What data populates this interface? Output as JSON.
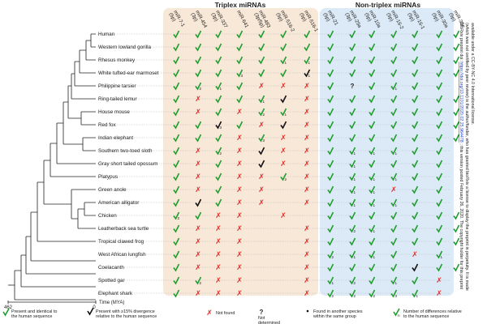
{
  "groups": {
    "triplex": {
      "title": "Triplex miRNAs",
      "columns": [
        "miR-7-1 (5p)",
        "miR-454 (3p)",
        "miR-337 (3p)",
        "miR-641",
        "miR-483 (3p/5p)",
        "miR-516-2 (5p)",
        "miR-516-1 (5p)"
      ]
    },
    "nontriplex": {
      "title": "Non-triplex miRNAs",
      "columns": [
        "miR-21 (5p)",
        "miR-29a (3p)",
        "miR-10a (5p)",
        "miR-16-2 (5p)",
        "miR-16-1 (5p)",
        "miR-30a (5p)",
        "miR-30e (5p)"
      ]
    }
  },
  "species": [
    "Human",
    "Western lowland gorilla",
    "Rhesus monkey",
    "White tufted-ear marmoset",
    "Philippine tarsier",
    "Ring-tailed lemur",
    "House mouse",
    "Red fox",
    "Indian elephant",
    "Southern two-toed sloth",
    "Gray short tailed opossum",
    "Platypus",
    "Green anole",
    "American alligator",
    "Chicken",
    "Leatherback sea turtle",
    "Tropical clawed frog",
    "West African lungfish",
    "Coelacanth",
    "Spotted gar",
    "Elephant shark"
  ],
  "grid_codes": [
    "GGGGGGG|GGGGGGG",
    "GGGGGGG|GGGGGGG",
    "GGGGGG1G1|GGGGGGG",
    "GGGG3GGB1|GGGGGGG",
    "GG2G1GXXX|GQGG1GG",
    "GXGGG1BX|GGGGGGG",
    "GXGXG2G1XX|GGGGGGG",
    "GGB3GXBXX|GGGGGGG",
    "GGGXG3XX|GGGGGGG",
    "GXG2XBXX|GG1G1G1GG",
    "GXGXBXX|GG1GGGG",
    "GXGXX2G2X|GG1G1G1GG",
    "GXGXX.X|GG1G1XGG",
    "GBGXX.X|GG1G1G1GG",
    "G2GXX.X|GGGGGGG",
    "GXXX..X|GG2G1GGGG",
    "GXXX..X|GGGGGGG",
    "GXXX..X|G2G1G1GXG1",
    "GXXX..X|GGGGBGG",
    "GG2XX..X|G1G2GG1GX",
    "GXXX..X|G2G2G2G3G1X"
  ],
  "timeline": {
    "label": "Time (MYA)",
    "ticks": [
      "462",
      "0"
    ]
  },
  "legend": [
    {
      "symbol": "check-green",
      "text": "Present and identical to the human sequence"
    },
    {
      "symbol": "check-black",
      "text": "Present with ≥15% divergence relative to the human sequence"
    },
    {
      "symbol": "x-red",
      "text": "Not found"
    },
    {
      "symbol": "question",
      "text": "Not determined"
    },
    {
      "symbol": "dot",
      "text": "Found in another species within the same group"
    },
    {
      "symbol": "check-num",
      "text": "Number of differences relative to the human sequence"
    }
  ],
  "side_note": {
    "line1": "bioRxiv preprint doi:",
    "link": "https://doi.org/10.1101/2020.02.25.964478",
    "line2": "; this version posted February 26, 2020. The copyright holder for this preprint",
    "line3": "(which was not certified by peer review) is the author/funder, who has granted bioRxiv a license to display the preprint in perpetuity. It is made",
    "line4": "available under a CC-BY-NC 4.0 International license."
  },
  "colors": {
    "triplex_bg": "#f8e8d8",
    "nontriplex_bg": "#dceaf7",
    "check_green": "#1f9e2f",
    "check_black": "#111111",
    "x_red": "#e0302a"
  }
}
